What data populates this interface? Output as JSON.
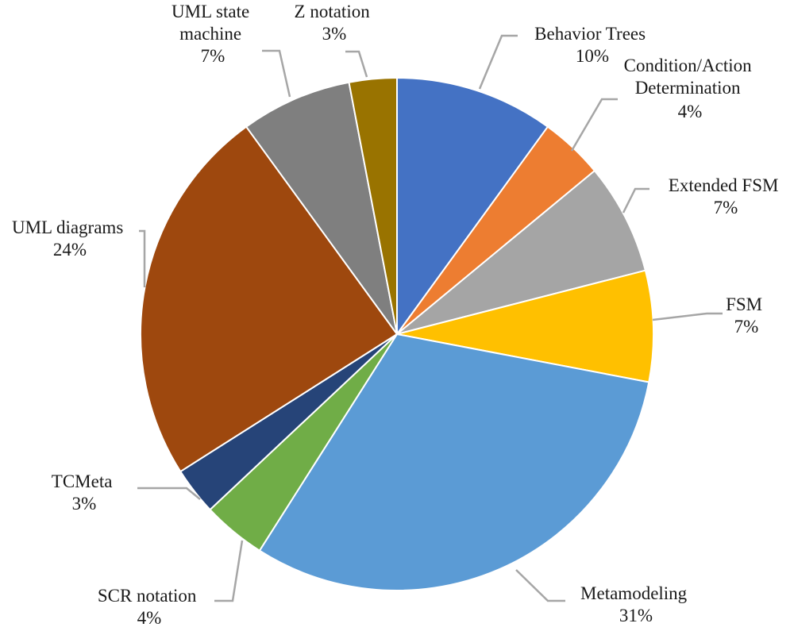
{
  "chart_data": {
    "type": "pie",
    "title": "",
    "slices": [
      {
        "label": "Behavior Trees",
        "value": 10,
        "percent_label": "10%",
        "color": "#4472C4"
      },
      {
        "label": "Condition/Action Determination",
        "value": 4,
        "percent_label": "4%",
        "color": "#ED7D31"
      },
      {
        "label": "Extended FSM",
        "value": 7,
        "percent_label": "7%",
        "color": "#A5A5A5"
      },
      {
        "label": "FSM",
        "value": 7,
        "percent_label": "7%",
        "color": "#FFC000"
      },
      {
        "label": "Metamodeling",
        "value": 31,
        "percent_label": "31%",
        "color": "#5B9BD5"
      },
      {
        "label": "SCR notation",
        "value": 4,
        "percent_label": "4%",
        "color": "#70AD47"
      },
      {
        "label": "TCMeta",
        "value": 3,
        "percent_label": "3%",
        "color": "#264478"
      },
      {
        "label": "UML diagrams",
        "value": 24,
        "percent_label": "24%",
        "color": "#9E480E"
      },
      {
        "label": "UML state machine",
        "value": 7,
        "percent_label": "7%",
        "color": "#7F7F7F"
      },
      {
        "label": "Z notation",
        "value": 3,
        "percent_label": "3%",
        "color": "#997300"
      }
    ]
  }
}
